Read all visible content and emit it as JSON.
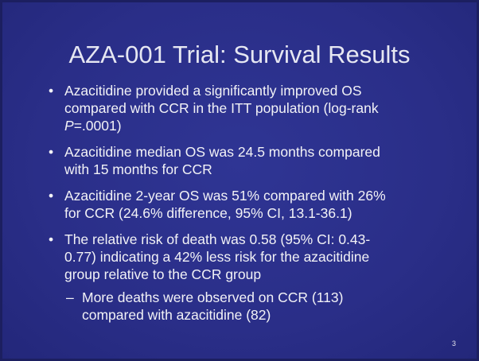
{
  "title": "AZA-001 Trial: Survival Results",
  "bullets": [
    {
      "lines": [
        "Azacitidine provided a significantly improved OS",
        "compared with CCR in the ITT population (log-rank",
        [
          "P",
          "=.0001)"
        ]
      ]
    },
    {
      "lines": [
        "Azacitidine median OS was 24.5 months compared",
        "with 15 months for CCR"
      ]
    },
    {
      "lines": [
        "Azacitidine 2-year OS was 51% compared with 26%",
        "for CCR (24.6% difference, 95% CI, 13.1-36.1)"
      ]
    },
    {
      "lines": [
        "The relative risk of death was 0.58 (95% CI: 0.43-",
        "0.77) indicating a 42% less risk for the azacitidine",
        "group relative to the CCR group"
      ],
      "sub": [
        "More deaths were observed on CCR (113)",
        "compared with azacitidine (82)"
      ]
    }
  ],
  "page_number": "3"
}
